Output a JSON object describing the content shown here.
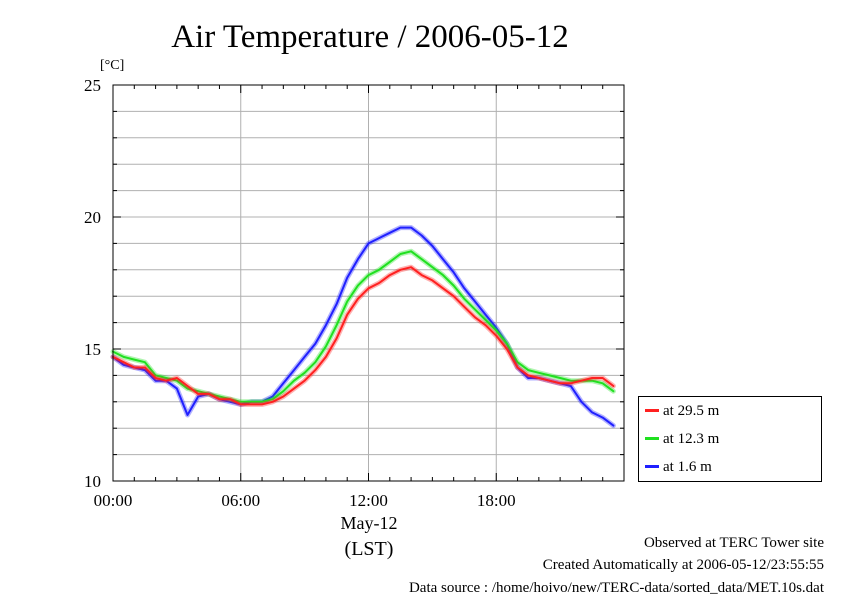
{
  "chart_data": {
    "type": "line",
    "title": "Air Temperature / 2006-05-12",
    "yunit": "[°C]",
    "ylim": [
      10,
      25
    ],
    "yticks": [
      10,
      15,
      20,
      25
    ],
    "xlim": [
      0,
      24
    ],
    "xtick_hours": [
      0,
      6,
      12,
      18
    ],
    "xtick_labels": [
      "00:00",
      "06:00",
      "12:00",
      "18:00"
    ],
    "xlabel_date": "May-12",
    "xlabel": "(LST)",
    "grid": true,
    "legend_position": "right-bottom",
    "x": [
      0,
      0.5,
      1,
      1.5,
      2,
      2.5,
      3,
      3.5,
      4,
      4.5,
      5,
      5.5,
      6,
      6.5,
      7,
      7.5,
      8,
      8.5,
      9,
      9.5,
      10,
      10.5,
      11,
      11.5,
      12,
      12.5,
      13,
      13.5,
      14,
      14.5,
      15,
      15.5,
      16,
      16.5,
      17,
      17.5,
      18,
      18.5,
      19,
      19.5,
      20,
      20.5,
      21,
      21.5,
      22,
      22.5,
      23,
      23.5
    ],
    "series": [
      {
        "name": "at 29.5 m",
        "color": "#ff2020",
        "values": [
          14.7,
          14.5,
          14.3,
          14.3,
          13.9,
          13.8,
          13.9,
          13.6,
          13.3,
          13.3,
          13.1,
          13.1,
          12.9,
          12.9,
          12.9,
          13.0,
          13.2,
          13.5,
          13.8,
          14.2,
          14.7,
          15.4,
          16.3,
          16.9,
          17.3,
          17.5,
          17.8,
          18.0,
          18.1,
          17.8,
          17.6,
          17.3,
          17.0,
          16.6,
          16.2,
          15.9,
          15.5,
          15.0,
          14.3,
          14.0,
          13.9,
          13.8,
          13.7,
          13.7,
          13.8,
          13.9,
          13.9,
          13.6
        ]
      },
      {
        "name": "at 12.3 m",
        "color": "#20e020",
        "values": [
          14.9,
          14.7,
          14.6,
          14.5,
          14.0,
          13.9,
          13.8,
          13.5,
          13.4,
          13.3,
          13.2,
          13.1,
          13.0,
          13.0,
          13.0,
          13.1,
          13.4,
          13.8,
          14.1,
          14.5,
          15.1,
          15.9,
          16.8,
          17.4,
          17.8,
          18.0,
          18.3,
          18.6,
          18.7,
          18.4,
          18.1,
          17.8,
          17.4,
          16.9,
          16.5,
          16.1,
          15.7,
          15.2,
          14.5,
          14.2,
          14.1,
          14.0,
          13.9,
          13.8,
          13.8,
          13.8,
          13.7,
          13.4
        ]
      },
      {
        "name": "at 1.6 m",
        "color": "#2020ff",
        "values": [
          14.7,
          14.4,
          14.3,
          14.2,
          13.8,
          13.8,
          13.5,
          12.5,
          13.2,
          13.3,
          13.1,
          13.0,
          12.9,
          13.0,
          13.0,
          13.2,
          13.7,
          14.2,
          14.7,
          15.2,
          15.9,
          16.7,
          17.7,
          18.4,
          19.0,
          19.2,
          19.4,
          19.6,
          19.6,
          19.3,
          18.9,
          18.4,
          17.9,
          17.3,
          16.8,
          16.3,
          15.8,
          15.2,
          14.3,
          13.9,
          13.9,
          13.8,
          13.7,
          13.6,
          13.0,
          12.6,
          12.4,
          12.1
        ]
      }
    ]
  },
  "footer": {
    "site": "Observed at TERC Tower site",
    "created": "Created Automatically at 2006-05-12/23:55:55",
    "source": "Data source : /home/hoivo/new/TERC-data/sorted_data/MET.10s.dat"
  }
}
